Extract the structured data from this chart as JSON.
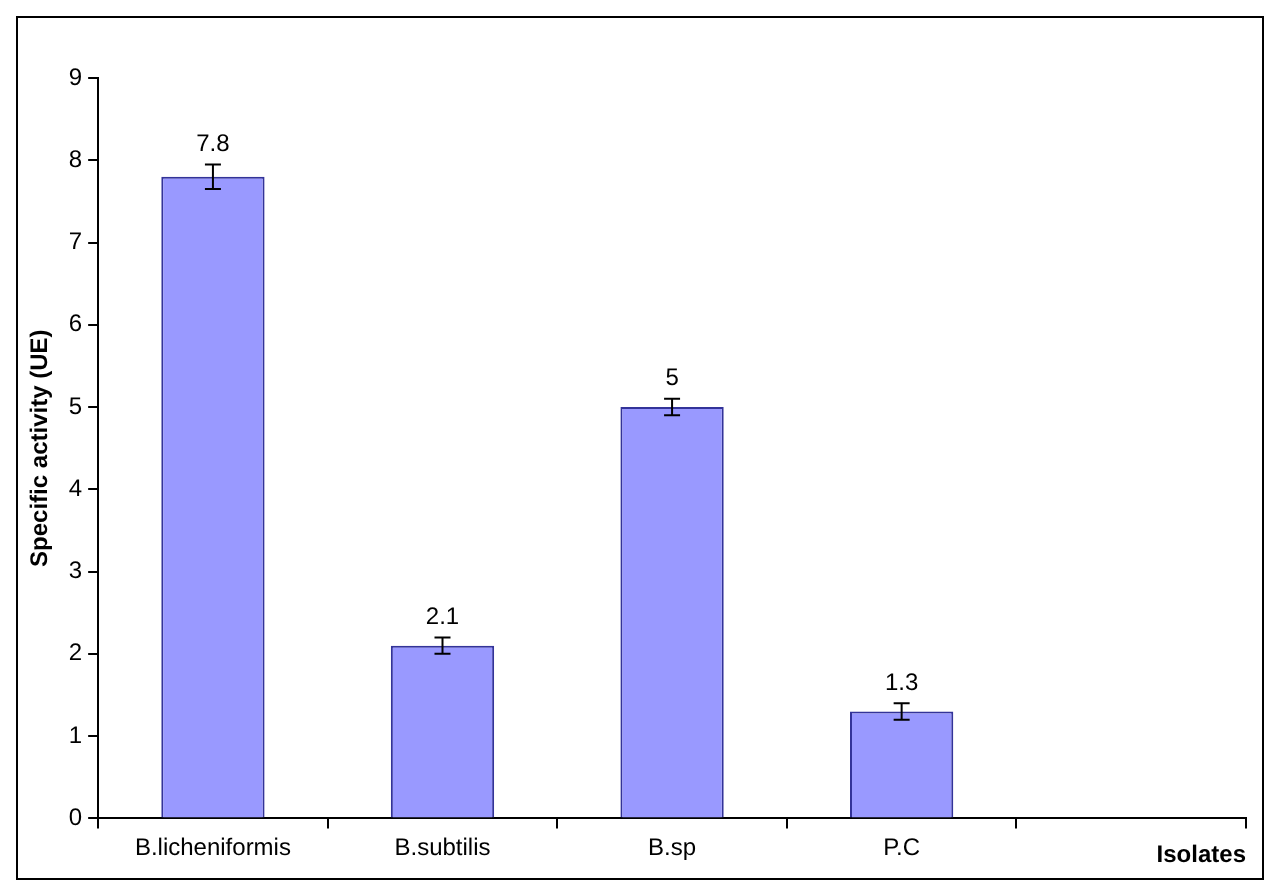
{
  "chart_data": {
    "type": "bar",
    "xlabel": "Isolates",
    "ylabel": "Specific activity (UE)",
    "categories": [
      "B.licheniformis",
      "B.subtilis",
      "B.sp",
      "P.C",
      null
    ],
    "values": [
      7.8,
      2.1,
      5,
      1.3,
      null
    ],
    "errors": [
      0.15,
      0.1,
      0.1,
      0.1,
      null
    ],
    "color": "#9999ff",
    "ylim": [
      0,
      9
    ],
    "yticks": [
      0,
      1,
      2,
      3,
      4,
      5,
      6,
      7,
      8,
      9
    ],
    "grid": false,
    "legend": false,
    "data_labels": true
  }
}
